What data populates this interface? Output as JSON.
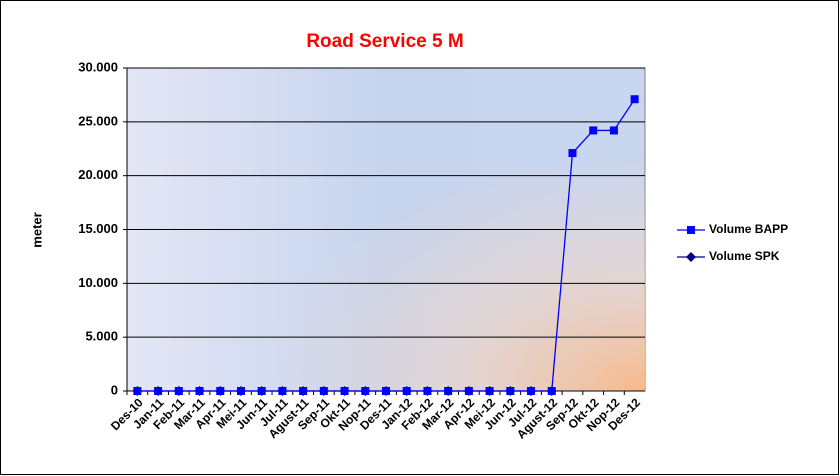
{
  "chart_data": {
    "type": "line",
    "title": "Road Service 5 M",
    "y_label": "meter",
    "categories": [
      "Des-10",
      "Jan-11",
      "Feb-11",
      "Mar-11",
      "Apr-11",
      "Mei-11",
      "Jun-11",
      "Jul-11",
      "Agust-11",
      "Sep-11",
      "Okt-11",
      "Nop-11",
      "Des-11",
      "Jan-12",
      "Feb-12",
      "Mar-12",
      "Apr-12",
      "Mei-12",
      "Jun-12",
      "Jul-12",
      "Agust-12",
      "Sep-12",
      "Okt-12",
      "Nop-12",
      "Des-12"
    ],
    "series": [
      {
        "name": "Volume BAPP",
        "color": "#0000ff",
        "marker": "square",
        "values": [
          0,
          0,
          0,
          0,
          0,
          0,
          0,
          0,
          0,
          0,
          0,
          0,
          0,
          0,
          0,
          0,
          0,
          0,
          0,
          0,
          0,
          22100,
          24200,
          24200,
          27100
        ]
      },
      {
        "name": "Volume SPK",
        "color": "#000080",
        "marker": "diamond",
        "values": [
          0,
          0,
          0,
          0,
          0,
          0,
          0,
          0,
          0,
          0,
          0,
          0,
          0,
          0,
          0,
          0,
          0,
          0,
          0,
          0,
          0,
          null,
          null,
          null,
          null
        ]
      }
    ],
    "ylim": [
      0,
      30000
    ],
    "yticks": [
      0,
      {
        "value": 5000,
        "label": "5.000"
      },
      {
        "value": 10000,
        "label": "10.000"
      },
      {
        "value": 15000,
        "label": "15.000"
      },
      {
        "value": 20000,
        "label": "20.000"
      },
      {
        "value": 25000,
        "label": "25.000"
      },
      {
        "value": 30000,
        "label": "30.000"
      }
    ],
    "grid": true,
    "legend": "right"
  }
}
